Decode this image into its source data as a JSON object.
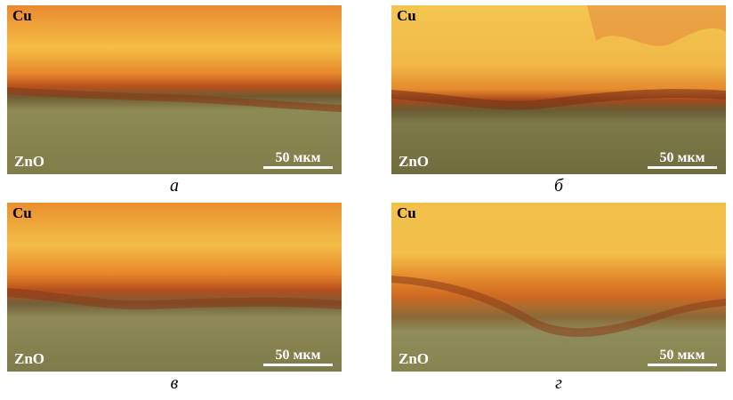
{
  "panels": [
    {
      "top_label": "Cu",
      "bottom_label": "ZnO",
      "scale": "50 мкм",
      "caption": "а"
    },
    {
      "top_label": "Cu",
      "bottom_label": "ZnO",
      "scale": "50 мкм",
      "caption": "б"
    },
    {
      "top_label": "Cu",
      "bottom_label": "ZnO",
      "scale": "50 мкм",
      "caption": "в"
    },
    {
      "top_label": "Cu",
      "bottom_label": "ZnO",
      "scale": "50 мкм",
      "caption": "г"
    }
  ],
  "colors": {
    "copper_bright": "#f7c548",
    "copper_orange": "#e08a2c",
    "interface_red": "#c0521e",
    "oxide_olive": "#8c8a52",
    "oxide_dark": "#6f6d3e"
  }
}
